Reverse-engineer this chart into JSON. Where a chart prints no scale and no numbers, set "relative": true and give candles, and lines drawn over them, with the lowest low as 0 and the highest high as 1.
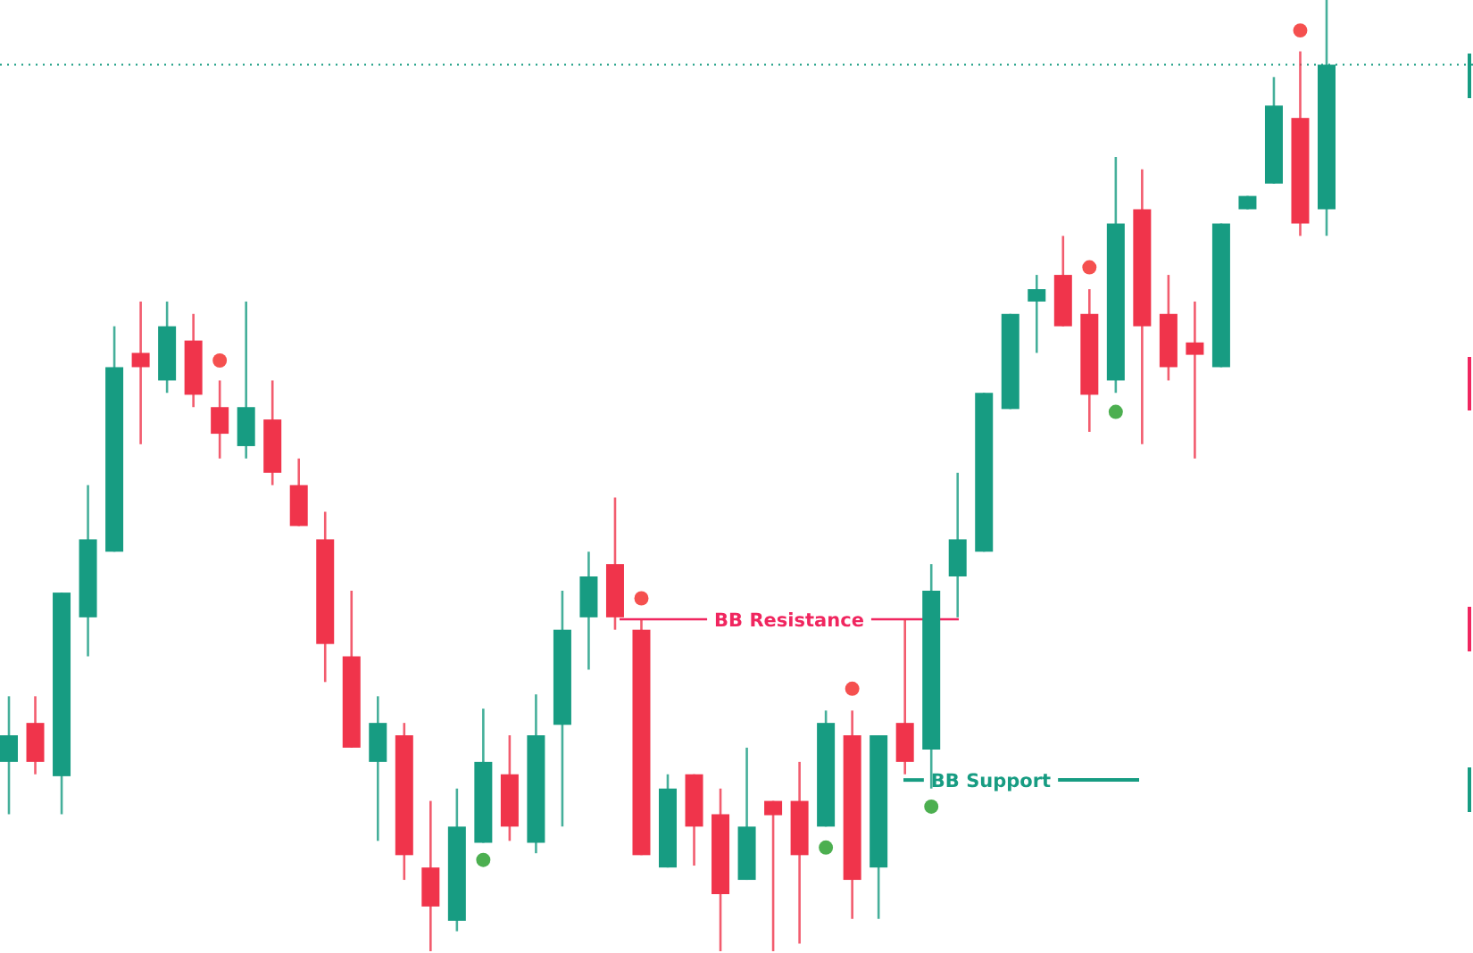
{
  "chart_data": {
    "type": "candlestick",
    "relative": true,
    "categories": [
      null,
      null,
      null,
      null,
      null,
      null,
      null,
      null,
      null,
      null,
      null,
      null,
      null,
      null,
      null,
      null,
      null,
      null,
      null,
      null,
      null,
      null,
      null,
      null,
      null,
      null,
      null,
      null,
      null,
      null,
      null,
      null,
      null,
      null,
      null,
      null,
      null,
      null,
      null,
      null,
      null,
      null,
      null,
      null,
      null,
      null,
      null,
      null,
      null,
      null,
      null
    ],
    "ohlc": [
      [
        0.199,
        0.268,
        0.144,
        0.227
      ],
      [
        0.24,
        0.268,
        0.186,
        0.199
      ],
      [
        0.184,
        0.377,
        0.144,
        0.377
      ],
      [
        0.351,
        0.49,
        0.31,
        0.433
      ],
      [
        0.42,
        0.657,
        0.42,
        0.614
      ],
      [
        0.629,
        0.683,
        0.533,
        0.614
      ],
      [
        0.6,
        0.683,
        0.587,
        0.657
      ],
      [
        0.642,
        0.67,
        0.572,
        0.585
      ],
      [
        0.572,
        0.6,
        0.518,
        0.544
      ],
      [
        0.531,
        0.683,
        0.518,
        0.572
      ],
      [
        0.559,
        0.6,
        0.49,
        0.503
      ],
      [
        0.49,
        0.518,
        0.447,
        0.447
      ],
      [
        0.433,
        0.462,
        0.283,
        0.323
      ],
      [
        0.31,
        0.379,
        0.214,
        0.214
      ],
      [
        0.199,
        0.268,
        0.116,
        0.24
      ],
      [
        0.227,
        0.24,
        0.075,
        0.101
      ],
      [
        0.088,
        0.158,
        0,
        0.047
      ],
      [
        0.032,
        0.171,
        0.021,
        0.131
      ],
      [
        0.114,
        0.255,
        0.114,
        0.199
      ],
      [
        0.186,
        0.227,
        0.116,
        0.131
      ],
      [
        0.114,
        0.27,
        0.103,
        0.227
      ],
      [
        0.238,
        0.379,
        0.131,
        0.338
      ],
      [
        0.351,
        0.42,
        0.296,
        0.394
      ],
      [
        0.407,
        0.477,
        0.338,
        0.351
      ],
      [
        0.338,
        0.349,
        0.101,
        0.101
      ],
      [
        0.088,
        0.186,
        0.088,
        0.171
      ],
      [
        0.186,
        0.186,
        0.09,
        0.131
      ],
      [
        0.144,
        0.171,
        0,
        0.06
      ],
      [
        0.075,
        0.214,
        0.075,
        0.131
      ],
      [
        0.158,
        0.158,
        0,
        0.143
      ],
      [
        0.158,
        0.199,
        0.008,
        0.101
      ],
      [
        0.131,
        0.253,
        0.131,
        0.24
      ],
      [
        0.227,
        0.253,
        0.034,
        0.075
      ],
      [
        0.088,
        0.227,
        0.034,
        0.227
      ],
      [
        0.24,
        0.349,
        0.186,
        0.199
      ],
      [
        0.212,
        0.407,
        0.171,
        0.379
      ],
      [
        0.394,
        0.503,
        0.351,
        0.433
      ],
      [
        0.42,
        0.587,
        0.42,
        0.587
      ],
      [
        0.57,
        0.67,
        0.57,
        0.67
      ],
      [
        0.683,
        0.711,
        0.629,
        0.696
      ],
      [
        0.711,
        0.752,
        0.657,
        0.657
      ],
      [
        0.67,
        0.696,
        0.546,
        0.585
      ],
      [
        0.6,
        0.835,
        0.587,
        0.765
      ],
      [
        0.78,
        0.822,
        0.533,
        0.657
      ],
      [
        0.67,
        0.711,
        0.6,
        0.614
      ],
      [
        0.64,
        0.683,
        0.518,
        0.627
      ],
      [
        0.614,
        0.765,
        0.614,
        0.765
      ],
      [
        0.78,
        0.794,
        0.78,
        0.794
      ],
      [
        0.807,
        0.919,
        0.807,
        0.889
      ],
      [
        0.876,
        0.946,
        0.752,
        0.765
      ],
      [
        0.78,
        1,
        0.752,
        0.932
      ]
    ],
    "colors": [
      "#179c82",
      "#f0344b",
      "#179c82",
      "#179c82",
      "#179c82",
      "#f0344b",
      "#179c82",
      "#f0344b",
      "#f0344b",
      "#179c82",
      "#f0344b",
      "#f0344b",
      "#f0344b",
      "#f0344b",
      "#179c82",
      "#f0344b",
      "#f0344b",
      "#179c82",
      "#179c82",
      "#f0344b",
      "#179c82",
      "#179c82",
      "#179c82",
      "#f0344b",
      "#f0344b",
      "#179c82",
      "#f0344b",
      "#f0344b",
      "#179c82",
      "#f0344b",
      "#f0344b",
      "#179c82",
      "#f0344b",
      "#179c82",
      "#f0344b",
      "#179c82",
      "#179c82",
      "#179c82",
      "#179c82",
      "#179c82",
      "#f0344b",
      "#f0344b",
      "#179c82",
      "#f0344b",
      "#f0344b",
      "#f0344b",
      "#179c82",
      "#179c82",
      "#179c82",
      "#f0344b",
      "#179c82"
    ],
    "series": [
      {
        "type": "scatter",
        "color": "#f5504f",
        "marker": "circle",
        "values": [
          null,
          null,
          null,
          null,
          null,
          null,
          null,
          null,
          0.621,
          null,
          null,
          null,
          null,
          null,
          null,
          null,
          null,
          null,
          null,
          null,
          null,
          null,
          null,
          null,
          0.371,
          null,
          null,
          null,
          null,
          null,
          null,
          null,
          0.276,
          null,
          null,
          null,
          null,
          null,
          null,
          null,
          null,
          0.719,
          null,
          null,
          null,
          null,
          null,
          null,
          null,
          0.968,
          null
        ]
      },
      {
        "type": "scatter",
        "color": "#4caf50",
        "marker": "circle",
        "values": [
          null,
          null,
          null,
          null,
          null,
          null,
          null,
          null,
          null,
          null,
          null,
          null,
          null,
          null,
          null,
          null,
          null,
          null,
          0.096,
          null,
          null,
          null,
          null,
          null,
          null,
          null,
          null,
          null,
          null,
          null,
          null,
          0.109,
          null,
          null,
          null,
          0.152,
          null,
          null,
          null,
          null,
          null,
          null,
          0.567,
          null,
          null,
          null,
          null,
          null,
          null,
          null,
          null
        ]
      }
    ],
    "ref_lines": [
      {
        "axis": "y",
        "value": 0.932,
        "color": "#179c82",
        "line_style": "dotted"
      },
      {
        "axis": "y",
        "value": 0.349,
        "label": "BB Resistance",
        "color": "#f0265f",
        "line_style": "solid"
      },
      {
        "axis": "y",
        "value": 0.18,
        "label": "BB Support",
        "color": "#179c82",
        "line_style": "solid"
      }
    ]
  }
}
